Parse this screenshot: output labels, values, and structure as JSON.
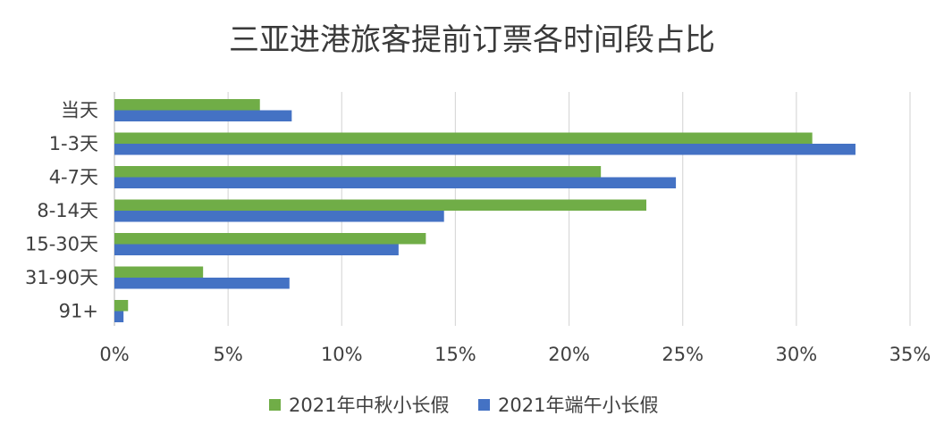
{
  "chart_data": {
    "type": "bar",
    "orientation": "horizontal",
    "title": "三亚进港旅客提前订票各时间段占比",
    "categories": [
      "当天",
      "1-3天",
      "4-7天",
      "8-14天",
      "15-30天",
      "31-90天",
      "91+"
    ],
    "series": [
      {
        "name": "2021年中秋小长假",
        "color": "#70ad47",
        "values": [
          6.4,
          30.7,
          21.4,
          23.4,
          13.7,
          3.9,
          0.6
        ]
      },
      {
        "name": "2021年端午小长假",
        "color": "#4472c4",
        "values": [
          7.8,
          32.6,
          24.7,
          14.5,
          12.5,
          7.7,
          0.4
        ]
      }
    ],
    "xlim": [
      0,
      35
    ],
    "xticks": [
      0,
      5,
      10,
      15,
      20,
      25,
      30,
      35
    ],
    "tick_format": "percent",
    "xlabel": "",
    "ylabel": "",
    "grid": true,
    "legend_position": "bottom"
  }
}
